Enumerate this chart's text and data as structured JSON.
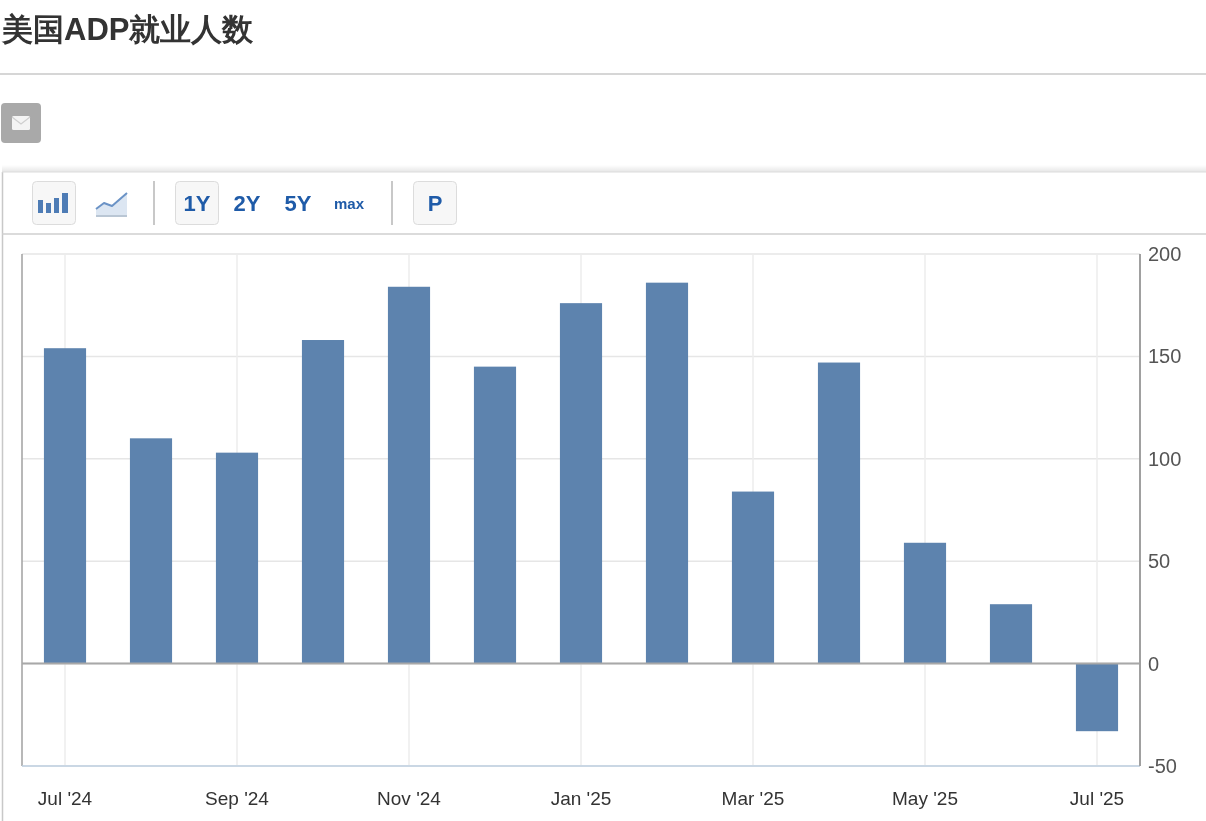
{
  "chart_data": {
    "type": "bar",
    "title": "美国ADP就业人数",
    "categories": [
      "Jul '24",
      null,
      "Sep '24",
      null,
      "Nov '24",
      null,
      "Jan '25",
      null,
      "Mar '25",
      null,
      "May '25",
      null,
      "Jul '25"
    ],
    "values": [
      154,
      110,
      103,
      158,
      184,
      145,
      176,
      186,
      84,
      147,
      59,
      29,
      -33
    ],
    "color": "#5d83ae",
    "ylim": [
      -50,
      200
    ],
    "yticks": [
      -50,
      0,
      50,
      100,
      150,
      200
    ],
    "grid": true,
    "annotations": [
      "1Y",
      "2Y",
      "5Y",
      "max",
      "P"
    ]
  }
}
